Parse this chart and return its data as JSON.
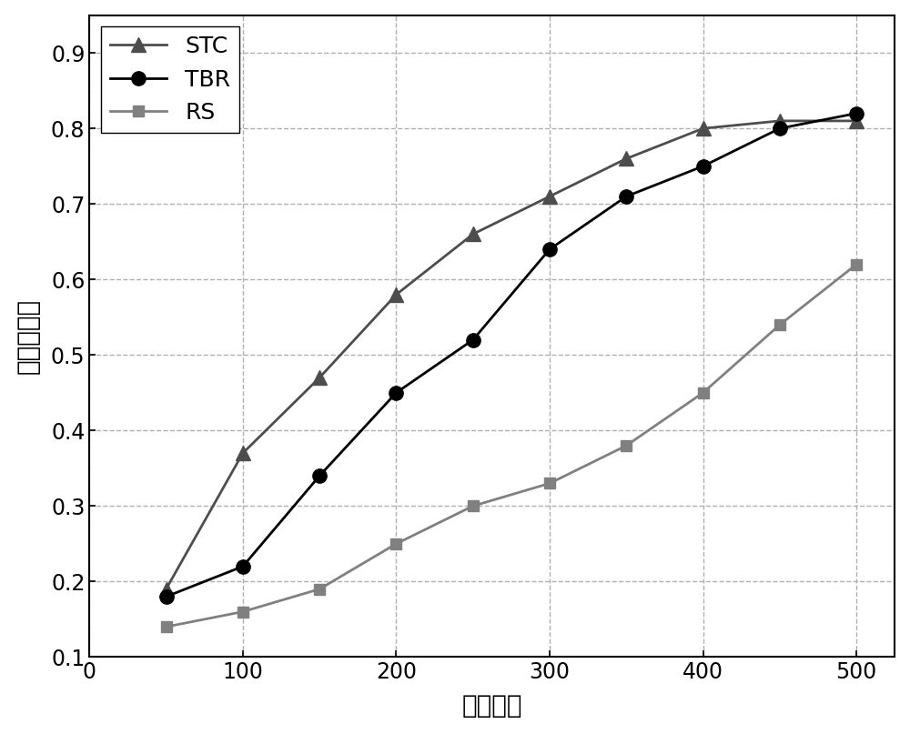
{
  "x": [
    50,
    100,
    150,
    200,
    250,
    300,
    350,
    400,
    450,
    500
  ],
  "STC": [
    0.19,
    0.37,
    0.47,
    0.58,
    0.66,
    0.71,
    0.76,
    0.8,
    0.81,
    0.81
  ],
  "TBR": [
    0.18,
    0.22,
    0.34,
    0.45,
    0.52,
    0.64,
    0.71,
    0.75,
    0.8,
    0.82
  ],
  "RS": [
    0.14,
    0.16,
    0.19,
    0.25,
    0.3,
    0.33,
    0.38,
    0.45,
    0.54,
    0.62
  ],
  "STC_color": "#4d4d4d",
  "TBR_color": "#000000",
  "RS_color": "#808080",
  "xlabel": "路网资源",
  "ylabel": "有效覆盖率",
  "xlim": [
    0,
    525
  ],
  "ylim": [
    0.1,
    0.95
  ],
  "xticks": [
    0,
    100,
    200,
    300,
    400,
    500
  ],
  "yticks": [
    0.1,
    0.2,
    0.3,
    0.4,
    0.5,
    0.6,
    0.7,
    0.8,
    0.9
  ],
  "grid_color": "#b0b0b0",
  "background_color": "#ffffff",
  "legend_labels": [
    "STC",
    "TBR",
    "RS"
  ],
  "xlabel_fontsize": 20,
  "ylabel_fontsize": 20,
  "tick_fontsize": 17,
  "legend_fontsize": 18,
  "linewidth": 2.0,
  "markersize_triangle": 11,
  "markersize_circle": 11,
  "markersize_square": 9
}
